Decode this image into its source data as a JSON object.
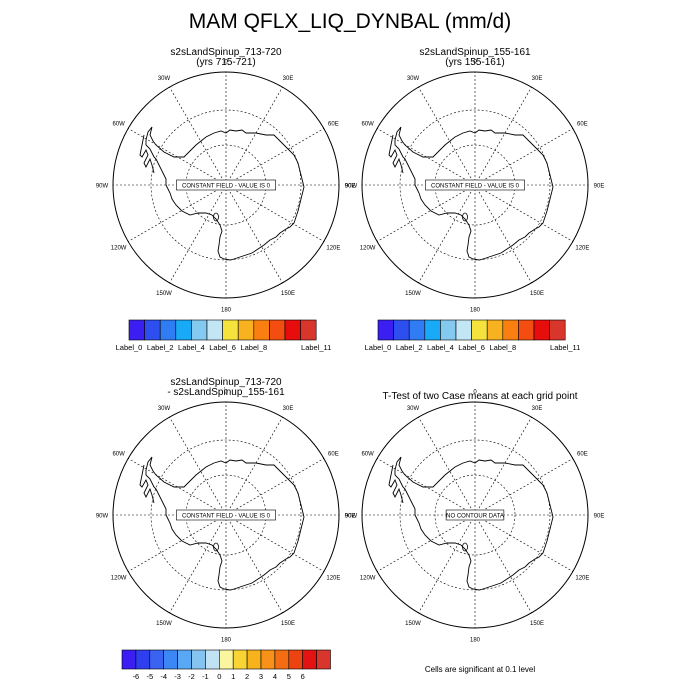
{
  "title": "MAM QFLX_LIQ_DYNBAL (mm/d)",
  "longitude_labels": [
    "0",
    "30E",
    "60E",
    "90E",
    "120E",
    "150E",
    "180",
    "150W",
    "120W",
    "90W",
    "60W",
    "30W"
  ],
  "panels": [
    {
      "title_lines": [
        "s2sLandSpinup_713-720",
        "(yrs 715-721)"
      ],
      "field_message": "CONSTANT FIELD - VALUE IS 0"
    },
    {
      "title_lines": [
        "s2sLandSpinup_155-161",
        "(yrs 155-161)"
      ],
      "field_message": "CONSTANT FIELD - VALUE IS 0"
    },
    {
      "title_lines": [
        "s2sLandSpinup_713-720",
        "- s2sLandSpinup_155-161"
      ],
      "field_message": "CONSTANT FIELD - VALUE IS 0"
    },
    {
      "title_lines": [
        "T-Test of two Case means at each grid point"
      ],
      "field_message": "NO CONTOUR DATA"
    }
  ],
  "colorbar_top": {
    "colors": [
      "#3a1ef2",
      "#2e4ff0",
      "#2f7cf5",
      "#18aaf7",
      "#84c9ef",
      "#c3e6f5",
      "#f6e23c",
      "#f8b220",
      "#f97f10",
      "#f34d12",
      "#e80d0d",
      "#d8352b"
    ],
    "labels": [
      "Label_0",
      "Label_2",
      "Label_4",
      "Label_6",
      "Label_8",
      "Label_11"
    ]
  },
  "colorbar_bottom": {
    "colors": [
      "#3a1ef2",
      "#2e3ff0",
      "#3b63f2",
      "#3d86f5",
      "#58a8f5",
      "#85c3f0",
      "#c0e2f2",
      "#fbf5a0",
      "#f8d535",
      "#f8b21c",
      "#f8911a",
      "#f56d12",
      "#ec4312",
      "#e41313",
      "#d8352b"
    ],
    "labels": [
      "-6",
      "-5",
      "-4",
      "-3",
      "-2",
      "-1",
      "0",
      "1",
      "2",
      "3",
      "4",
      "5",
      "6"
    ]
  },
  "significance_note": "Cells are significant at 0.1 level"
}
